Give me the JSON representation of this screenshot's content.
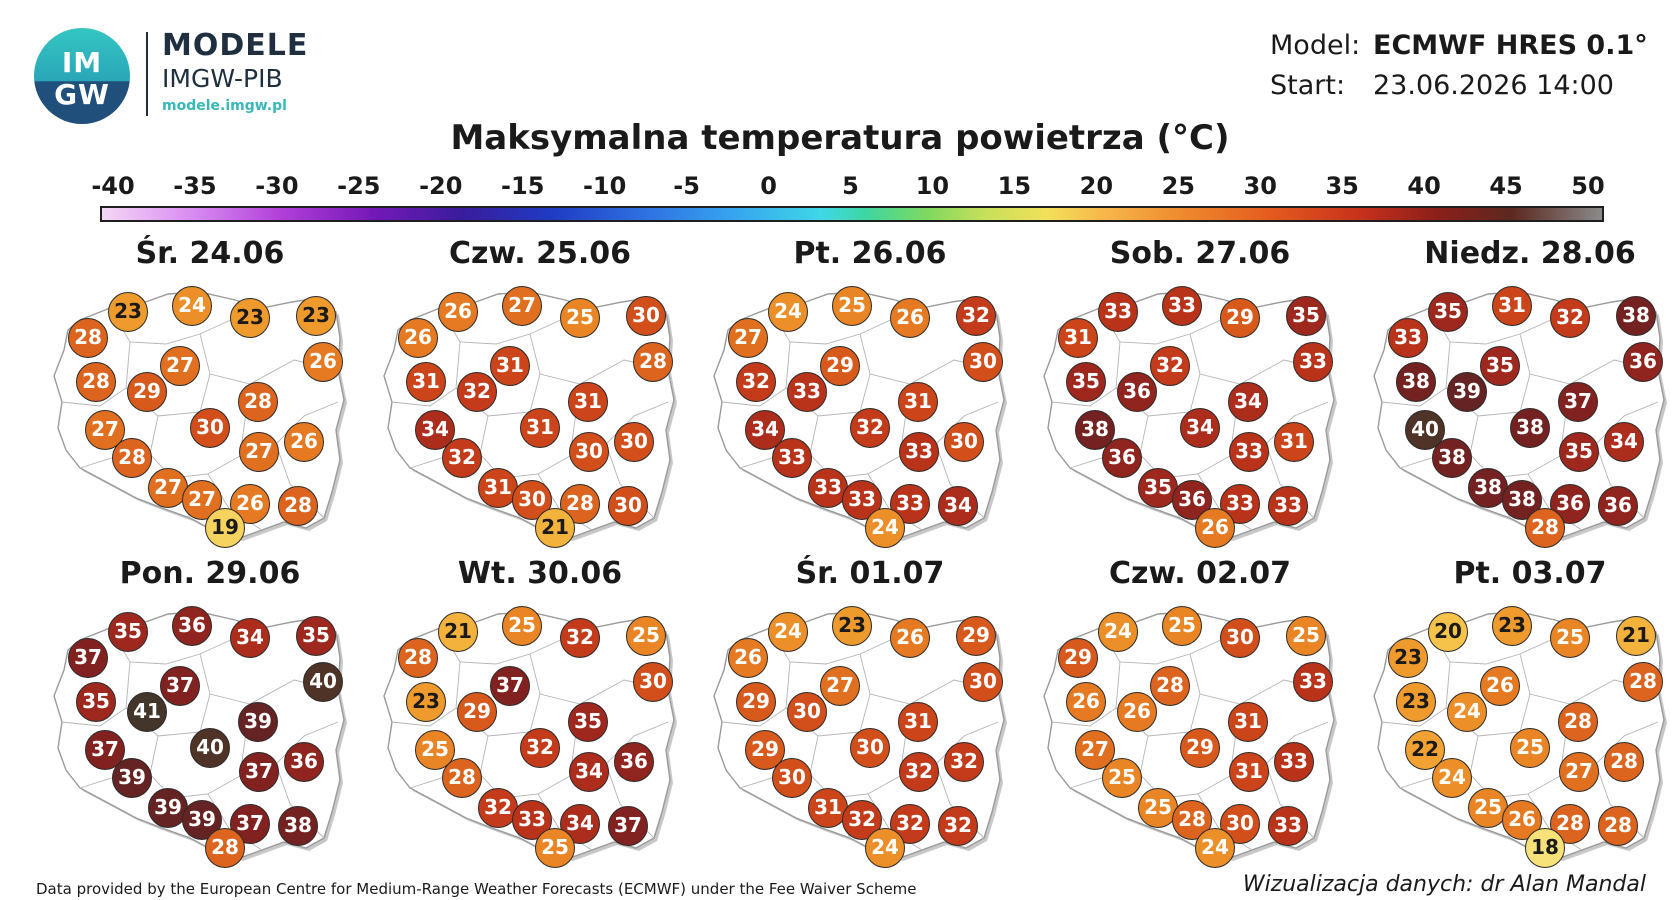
{
  "logo": {
    "badge_line1": "IM",
    "badge_line2": "GW",
    "title": "MODELE",
    "subtitle": "IMGW-PIB",
    "url": "modele.imgw.pl"
  },
  "meta": {
    "model_label": "Model:",
    "model_value": "ECMWF HRES 0.1°",
    "start_label": "Start:",
    "start_value": "23.06.2026 14:00"
  },
  "title": "Maksymalna temperatura powietrza (°C)",
  "colorbar": {
    "ticks": [
      "-40",
      "-35",
      "-30",
      "-25",
      "-20",
      "-15",
      "-10",
      "-5",
      "0",
      "5",
      "10",
      "15",
      "20",
      "25",
      "30",
      "35",
      "40",
      "45",
      "50"
    ]
  },
  "days": [
    {
      "label": "Śr. 24.06",
      "values": [
        23,
        24,
        23,
        23,
        28,
        26,
        27,
        28,
        29,
        28,
        27,
        30,
        28,
        27,
        26,
        27,
        27,
        26,
        28,
        19
      ]
    },
    {
      "label": "Czw. 25.06",
      "values": [
        26,
        27,
        25,
        30,
        26,
        28,
        31,
        31,
        32,
        31,
        34,
        31,
        32,
        30,
        30,
        31,
        30,
        28,
        30,
        21
      ]
    },
    {
      "label": "Pt. 26.06",
      "values": [
        24,
        25,
        26,
        32,
        27,
        30,
        29,
        32,
        33,
        31,
        34,
        32,
        33,
        33,
        30,
        33,
        33,
        33,
        34,
        24
      ]
    },
    {
      "label": "Sob. 27.06",
      "values": [
        33,
        33,
        29,
        35,
        31,
        33,
        32,
        35,
        36,
        34,
        38,
        34,
        36,
        33,
        31,
        35,
        36,
        33,
        33,
        26
      ]
    },
    {
      "label": "Niedz. 28.06",
      "values": [
        35,
        31,
        32,
        38,
        33,
        36,
        35,
        38,
        39,
        37,
        40,
        38,
        38,
        35,
        34,
        38,
        38,
        36,
        36,
        28
      ]
    },
    {
      "label": "Pon. 29.06",
      "values": [
        35,
        36,
        34,
        35,
        37,
        40,
        37,
        35,
        41,
        39,
        37,
        40,
        39,
        37,
        36,
        39,
        39,
        37,
        38,
        28
      ]
    },
    {
      "label": "Wt. 30.06",
      "values": [
        21,
        25,
        32,
        25,
        28,
        30,
        37,
        23,
        29,
        35,
        25,
        32,
        28,
        34,
        36,
        32,
        33,
        34,
        37,
        25
      ]
    },
    {
      "label": "Śr. 01.07",
      "values": [
        24,
        23,
        26,
        29,
        26,
        30,
        27,
        29,
        30,
        31,
        29,
        30,
        30,
        32,
        32,
        31,
        32,
        32,
        32,
        24
      ]
    },
    {
      "label": "Czw. 02.07",
      "values": [
        24,
        25,
        30,
        25,
        29,
        33,
        28,
        26,
        26,
        31,
        27,
        29,
        25,
        31,
        33,
        25,
        28,
        30,
        33,
        24
      ]
    },
    {
      "label": "Pt. 03.07",
      "values": [
        20,
        23,
        25,
        21,
        23,
        28,
        26,
        23,
        24,
        28,
        22,
        25,
        24,
        27,
        28,
        25,
        26,
        28,
        28,
        18
      ]
    }
  ],
  "temperature_colors": {
    "18": "#f7e27a",
    "19": "#f6d25e",
    "20": "#f5c24a",
    "21": "#f3b23c",
    "22": "#f1a232",
    "23": "#ef9a2c",
    "24": "#ec8f28",
    "25": "#e98524",
    "26": "#e57a22",
    "27": "#e16f20",
    "28": "#dc641e",
    "29": "#d7591c",
    "30": "#d24e1b",
    "31": "#cb441a",
    "32": "#c33b1a",
    "33": "#b9331b",
    "34": "#ad2d1c",
    "35": "#9f281e",
    "36": "#90241f",
    "37": "#822220",
    "38": "#742221",
    "39": "#652323",
    "40": "#4e3326",
    "41": "#43352a"
  },
  "footer": {
    "left": "Data provided by the European Centre for Medium-Range Weather Forecasts (ECMWF) under the Fee Waiver Scheme",
    "right": "Wizualizacja danych: dr Alan Mandal"
  }
}
